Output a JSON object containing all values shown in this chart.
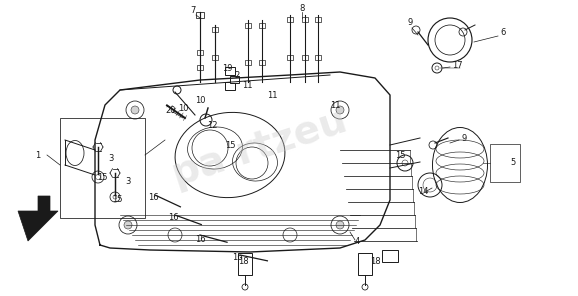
{
  "bg_color": "#ffffff",
  "diagram_color": "#1a1a1a",
  "watermark_color": "#cccccc",
  "watermark_alpha": 0.4,
  "fig_width": 5.78,
  "fig_height": 2.96,
  "dpi": 100
}
